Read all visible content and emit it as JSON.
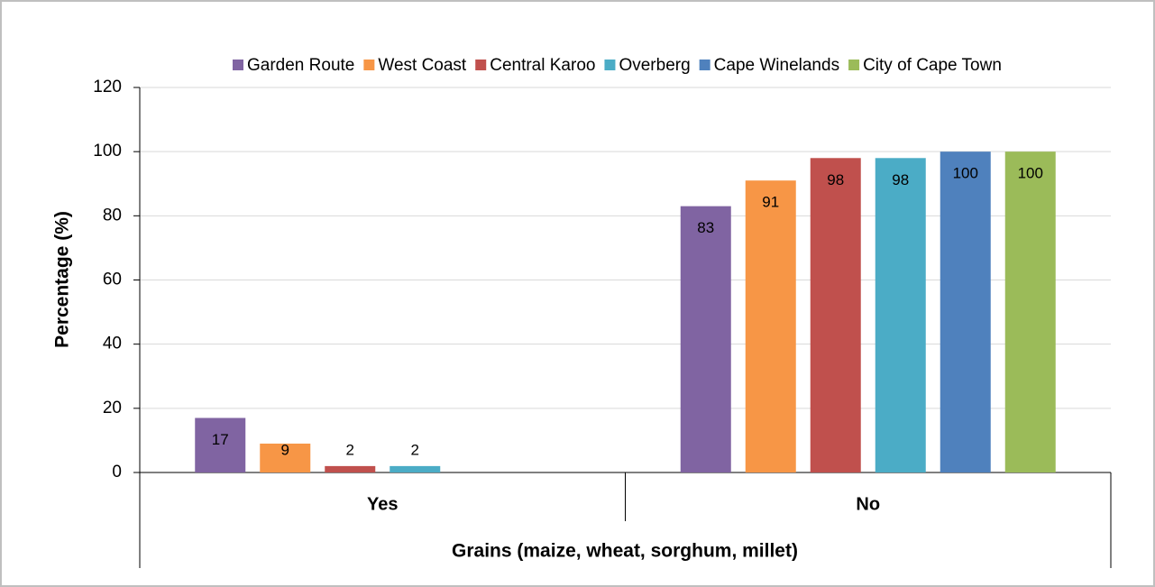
{
  "chart_data": {
    "type": "bar",
    "y_label": "Percentage (%)",
    "x_label": "Grains (maize, wheat, sorghum, millet)",
    "categories": [
      "Yes",
      "No"
    ],
    "series": [
      {
        "name": "Garden Route",
        "color": "#8064a2",
        "values": [
          17,
          83
        ]
      },
      {
        "name": "West Coast",
        "color": "#f79646",
        "values": [
          9,
          91
        ]
      },
      {
        "name": "Central Karoo",
        "color": "#c0504d",
        "values": [
          2,
          98
        ]
      },
      {
        "name": "Overberg",
        "color": "#4bacc6",
        "values": [
          2,
          98
        ]
      },
      {
        "name": "Cape Winelands",
        "color": "#4f81bd",
        "values": [
          null,
          100
        ]
      },
      {
        "name": "City of Cape Town",
        "color": "#9bbb59",
        "values": [
          null,
          100
        ]
      }
    ],
    "ylim": [
      0,
      120
    ],
    "yticks": [
      0,
      20,
      40,
      60,
      80,
      100,
      120
    ],
    "grid": true,
    "legend": "top"
  }
}
